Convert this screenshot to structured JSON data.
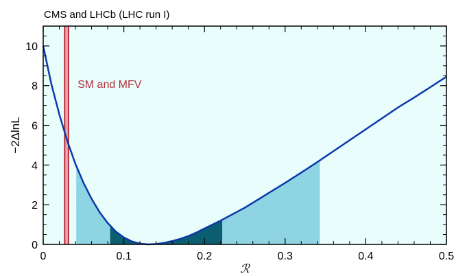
{
  "chart_data": {
    "type": "line",
    "title": "CMS and LHCb (LHC run I)",
    "xlabel": "ℛ",
    "ylabel": "−2ΔlnL",
    "xlim": [
      0,
      0.5
    ],
    "ylim": [
      0,
      11
    ],
    "x_ticks": [
      0,
      0.1,
      0.2,
      0.3,
      0.4,
      0.5
    ],
    "x_tick_labels": [
      "0",
      "0.1",
      "0.2",
      "0.3",
      "0.4",
      "0.5"
    ],
    "y_ticks": [
      0,
      2,
      4,
      6,
      8,
      10
    ],
    "y_tick_labels": [
      "0",
      "2",
      "4",
      "6",
      "8",
      "10"
    ],
    "grid": false,
    "legend": "none",
    "series": [
      {
        "x": [
          0,
          0.01,
          0.02,
          0.03,
          0.04,
          0.05,
          0.06,
          0.07,
          0.08,
          0.09,
          0.1,
          0.11,
          0.12,
          0.13,
          0.14,
          0.15,
          0.16,
          0.17,
          0.18,
          0.19,
          0.2,
          0.22,
          0.25,
          0.28,
          0.3,
          0.32,
          0.34,
          0.36,
          0.38,
          0.4,
          0.42,
          0.44,
          0.46,
          0.48,
          0.5
        ],
        "y": [
          10.0,
          8.1,
          6.55,
          5.2,
          4.05,
          3.1,
          2.3,
          1.62,
          1.08,
          0.65,
          0.35,
          0.15,
          0.04,
          0.0,
          0.02,
          0.08,
          0.17,
          0.28,
          0.42,
          0.6,
          0.8,
          1.2,
          1.85,
          2.6,
          3.1,
          3.62,
          4.15,
          4.7,
          5.25,
          5.8,
          6.35,
          6.9,
          7.4,
          7.92,
          8.45
        ]
      }
    ],
    "bands": [
      {
        "name": "outer",
        "x_range": [
          0.041,
          0.343
        ],
        "color": "#8fd4e3"
      },
      {
        "name": "inner",
        "x_range": [
          0.083,
          0.222
        ],
        "color": "#0b5e6f"
      }
    ],
    "reference_line": {
      "label": "SM and MFV",
      "x": 0.029,
      "color": "#b3303b"
    },
    "colors": {
      "background": "#eafdfd",
      "curve": "#0a3aa8"
    }
  }
}
